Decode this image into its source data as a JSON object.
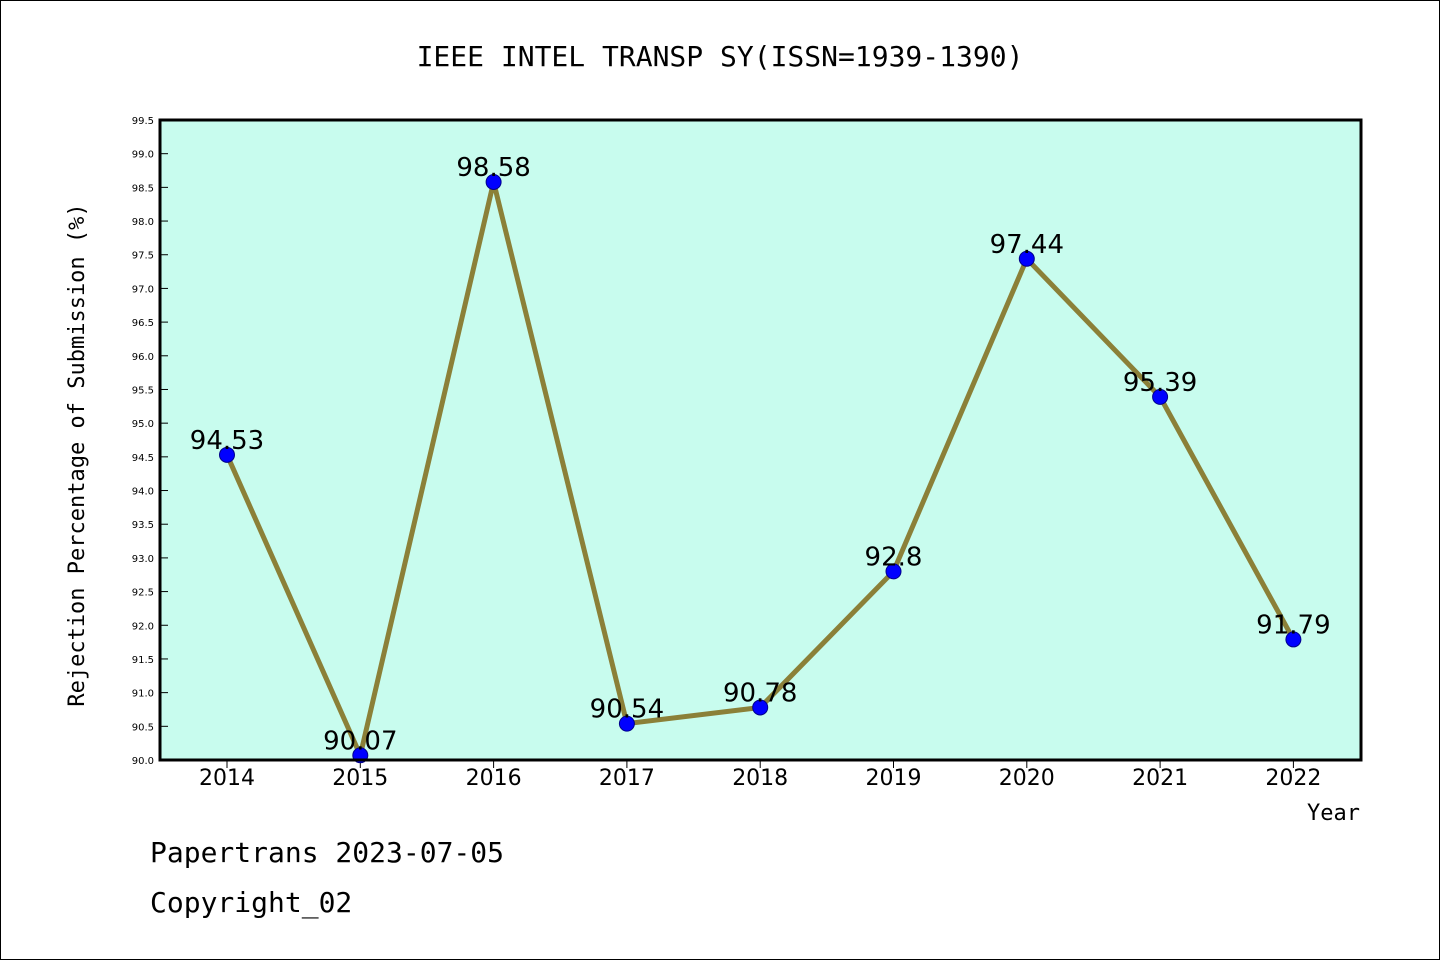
{
  "chart_data": {
    "type": "line",
    "title": "IEEE INTEL TRANSP SY(ISSN=1939-1390)",
    "xlabel": "Year",
    "ylabel": "Rejection Percentage of Submission (%)",
    "categories": [
      "2014",
      "2015",
      "2016",
      "2017",
      "2018",
      "2019",
      "2020",
      "2021",
      "2022"
    ],
    "values": [
      94.53,
      90.07,
      98.58,
      90.54,
      90.78,
      92.8,
      97.44,
      95.39,
      91.79
    ],
    "data_labels": [
      "94.53",
      "90.07",
      "98.58",
      "90.54",
      "90.78",
      "92.8",
      "97.44",
      "95.39",
      "91.79"
    ],
    "ylim": [
      90.0,
      99.5
    ],
    "yticks": [
      "90.0",
      "90.5",
      "91.0",
      "91.5",
      "92.0",
      "92.5",
      "93.0",
      "93.5",
      "94.0",
      "94.5",
      "95.0",
      "95.5",
      "96.0",
      "96.5",
      "97.0",
      "97.5",
      "98.0",
      "98.5",
      "99.0",
      "99.5"
    ],
    "grid": false,
    "colors": {
      "plot_background": "#c8fcee",
      "line": "#8b8038",
      "marker": "#0000ff"
    }
  },
  "footer": {
    "line1": "Papertrans 2023-07-05",
    "line2": "Copyright_02"
  }
}
